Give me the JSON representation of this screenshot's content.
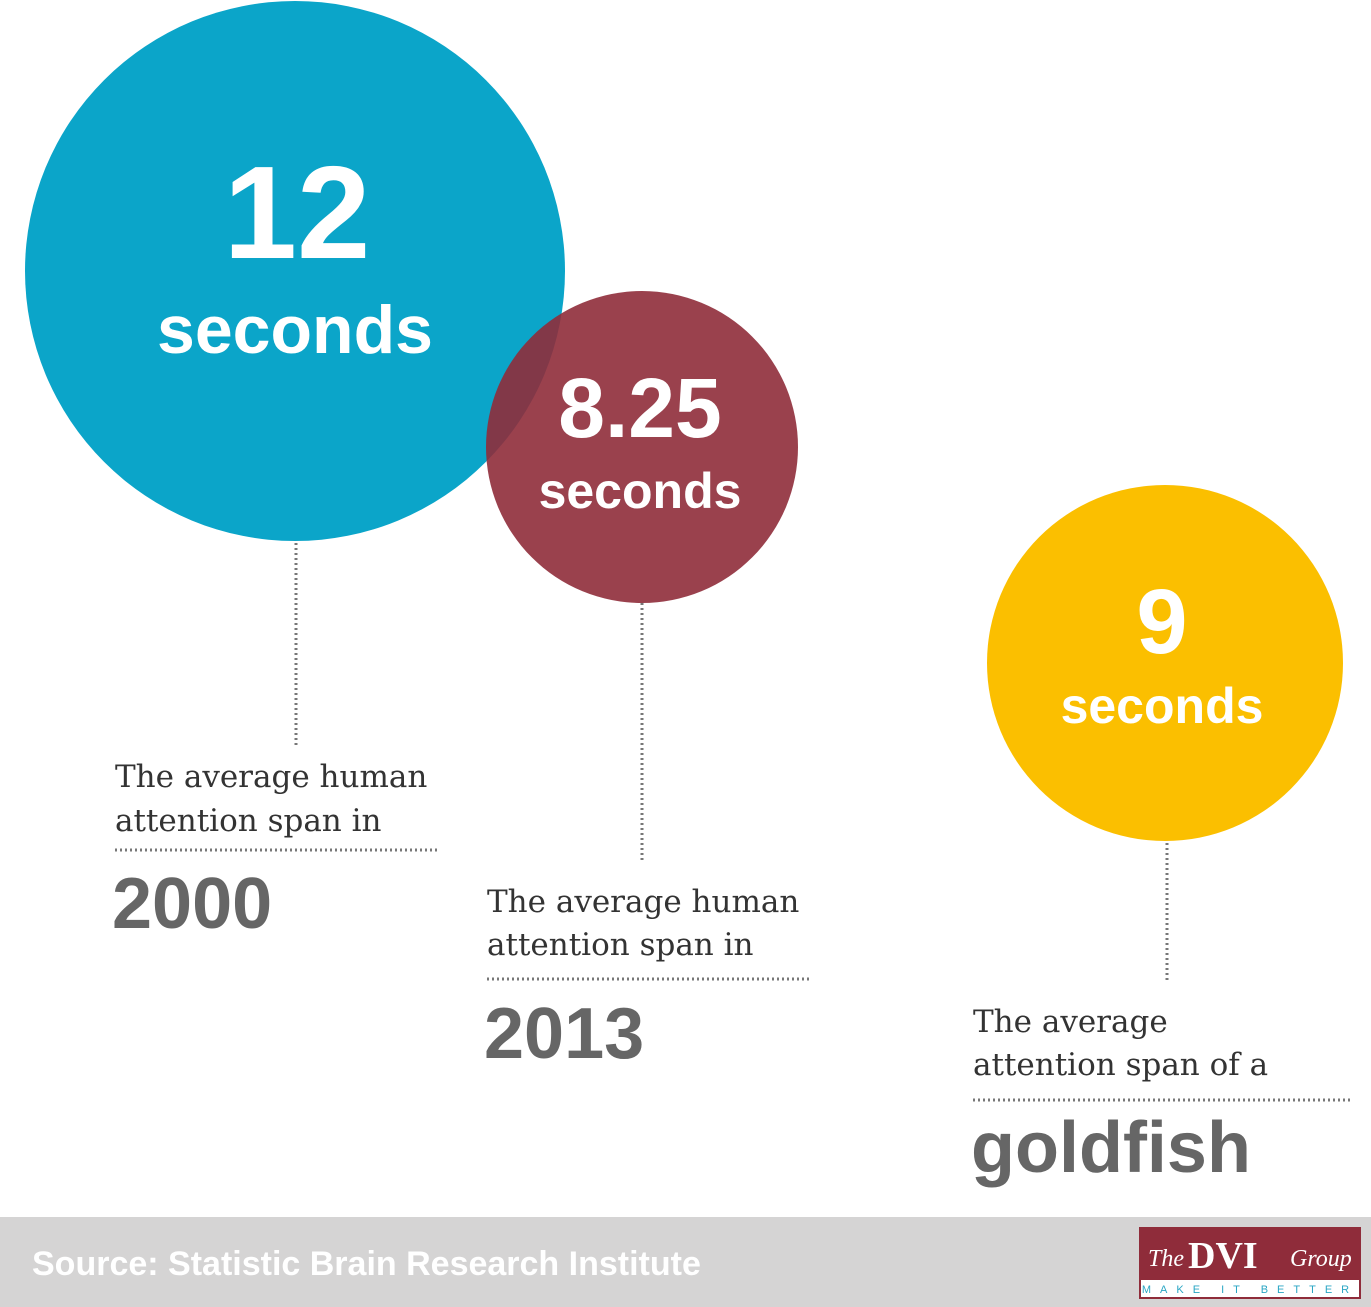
{
  "items": [
    {
      "value": "12",
      "unit": "seconds",
      "description": [
        "The average human",
        "attention span in"
      ],
      "label": "2000"
    },
    {
      "value": "8.25",
      "unit": "seconds",
      "description": [
        "The average human",
        "attention span in"
      ],
      "label": "2013"
    },
    {
      "value": "9",
      "unit": "seconds",
      "description": [
        "The average",
        "attention span of a"
      ],
      "label": "goldfish"
    }
  ],
  "footer": {
    "source": "Source: Statistic Brain Research Institute",
    "logo": {
      "the": "The",
      "name": "DVI",
      "group": "Group",
      "tagline": "MAKE IT BETTER"
    }
  }
}
